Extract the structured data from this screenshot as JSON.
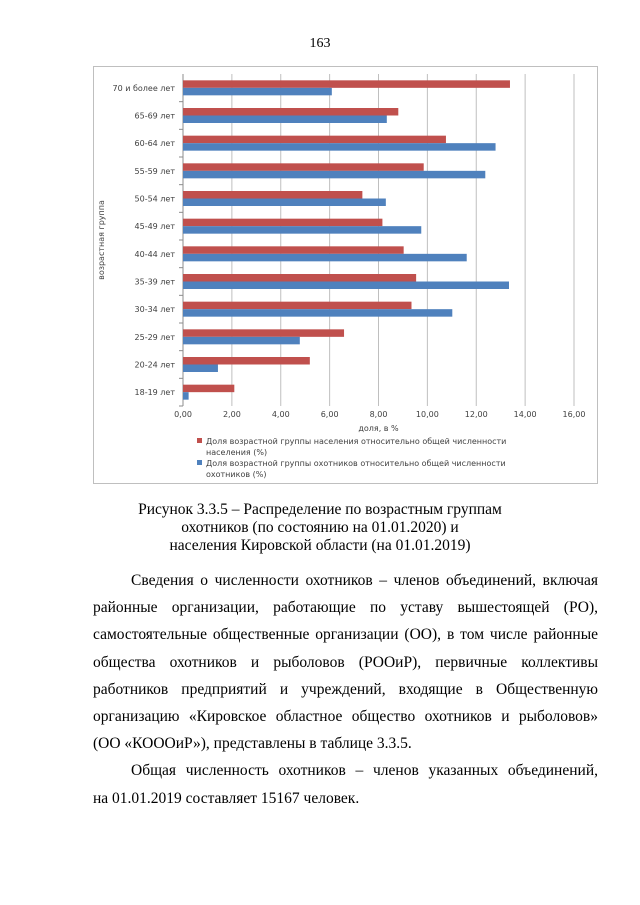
{
  "page_number": "163",
  "chart_data": {
    "type": "bar",
    "orientation": "horizontal",
    "categories": [
      "70 и более лет",
      "65-69 лет",
      "60-64 лет",
      "55-59 лет",
      "50-54 лет",
      "45-49 лет",
      "40-44 лет",
      "35-39 лет",
      "30-34 лет",
      "25-29 лет",
      "20-24 лет",
      "18-19 лет"
    ],
    "series": [
      {
        "name": "Доля возрастной группы населения относительно общей численности населения (%)",
        "color": "#c0504d",
        "values": [
          13.38,
          8.81,
          10.76,
          9.85,
          7.34,
          8.16,
          9.03,
          9.54,
          9.35,
          6.59,
          5.19,
          2.1
        ]
      },
      {
        "name": "Доля возрастной группы охотников относительно общей численности охотников (%)",
        "color": "#4f81bd",
        "values": [
          6.09,
          8.34,
          12.79,
          12.37,
          8.3,
          9.75,
          11.61,
          13.34,
          11.02,
          4.78,
          1.43,
          0.23
        ]
      }
    ],
    "xlabel": "доля, в %",
    "ylabel": "возрастная группа",
    "xlim": [
      0,
      16
    ],
    "xticks": [
      "0,00",
      "2,00",
      "4,00",
      "6,00",
      "8,00",
      "10,00",
      "12,00",
      "14,00",
      "16,00"
    ],
    "grid": true,
    "legend": "bottom",
    "legend_lines": [
      [
        "Доля возрастной группы населения относительно общей численности",
        "населения (%)"
      ],
      [
        "Доля возрастной группы охотников относительно общей численности",
        "охотников (%)"
      ]
    ]
  },
  "caption": [
    "Рисунок 3.3.5 – Распределение по возрастным группам",
    "охотников (по состоянию на 01.01.2020) и",
    "населения Кировской области (на 01.01.2019)"
  ],
  "paragraphs": [
    [
      "Сведения о численности охотников – членов объединений, включая",
      "районные организации, работающие по уставу вышестоящей (РО),",
      "самостоятельные общественные организации (ОО), в том числе районные",
      "общества охотников и рыболовов (РООиР), первичные коллективы",
      "работников предприятий и учреждений, входящие в Общественную",
      "организацию «Кировское областное общество охотников и рыболовов»",
      "(ОО «КОООиР»), представлены в таблице 3.3.5."
    ],
    [
      "Общая численность охотников – членов указанных объединений,",
      "на 01.01.2019 составляет 15167 человек."
    ]
  ]
}
